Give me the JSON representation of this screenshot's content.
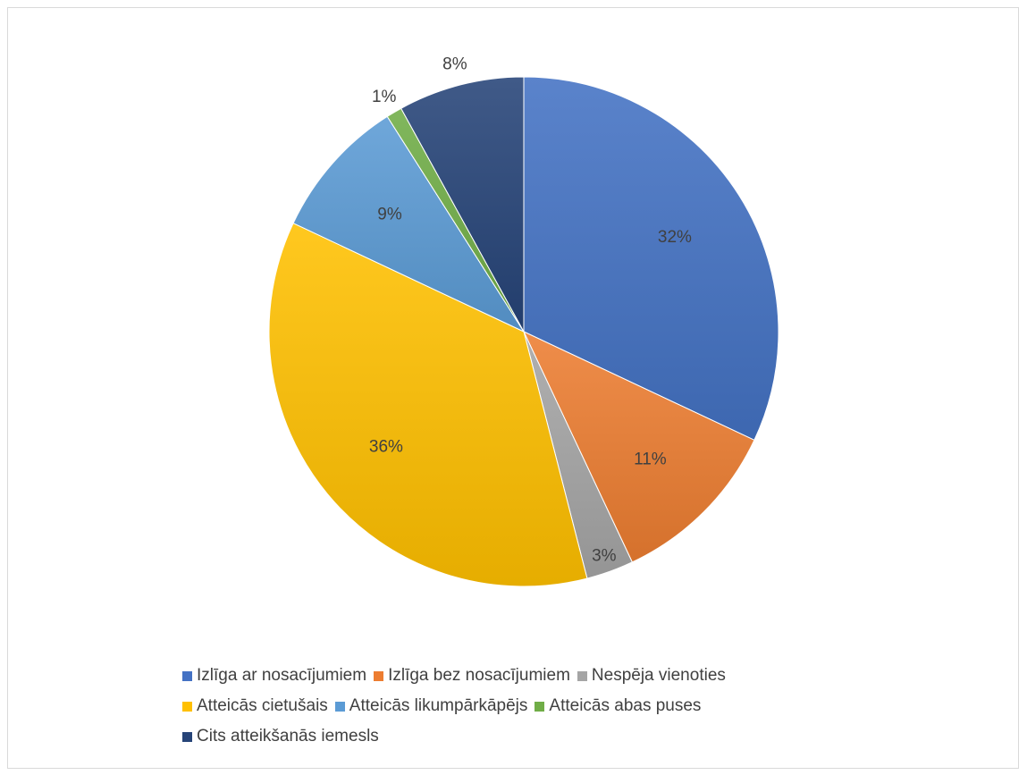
{
  "chart_data": {
    "type": "pie",
    "categories": [
      "Izlīga ar nosacījumiem",
      "Izlīga bez nosacījumiem",
      "Nespēja vienoties",
      "Atteicās cietušais",
      "Atteicās likumpārkāpējs",
      "Atteicās abas puses",
      "Cits atteikšanās iemesls"
    ],
    "values": [
      32,
      11,
      3,
      36,
      9,
      1,
      8
    ],
    "labels": [
      "32%",
      "11%",
      "3%",
      "36%",
      "9%",
      "1%",
      "8%"
    ],
    "colors": [
      "#4472C4",
      "#ED7D31",
      "#A5A5A5",
      "#FFC000",
      "#5B9BD5",
      "#70AD47",
      "#264478"
    ],
    "legend_position": "bottom"
  }
}
